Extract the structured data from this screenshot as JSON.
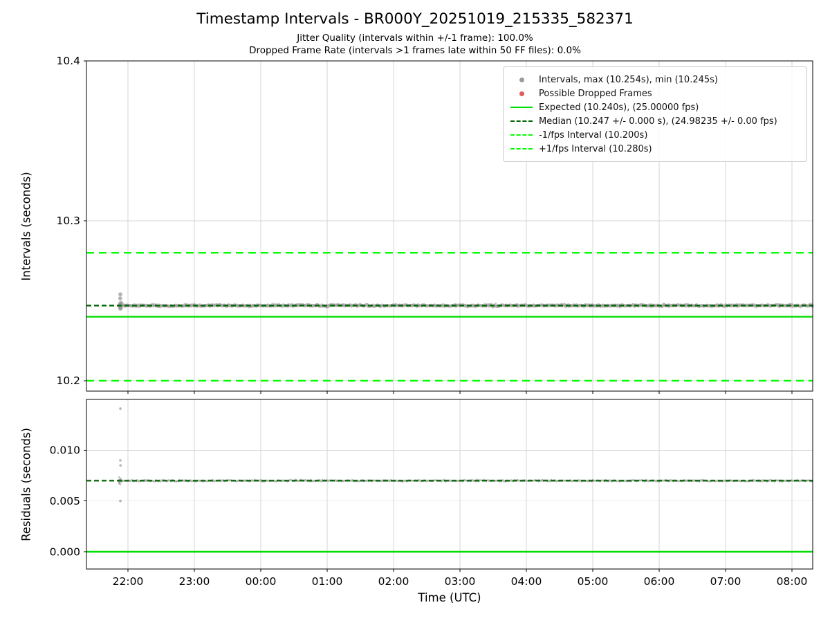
{
  "figure": {
    "title": "Timestamp Intervals - BR000Y_20251019_215335_582371",
    "subtitle_jitter": "Jitter Quality (intervals within +/-1 frame): 100.0%",
    "subtitle_dropped": "Dropped Frame Rate (intervals >1 frames late within 50 FF files): 0.0%"
  },
  "x_axis": {
    "label": "Time (UTC)",
    "lim": [
      21.375,
      32.3125
    ],
    "ticks": [
      22,
      23,
      24,
      25,
      26,
      27,
      28,
      29,
      30,
      31,
      32
    ],
    "tick_labels": [
      "22:00",
      "23:00",
      "00:00",
      "01:00",
      "02:00",
      "03:00",
      "04:00",
      "05:00",
      "06:00",
      "07:00",
      "08:00"
    ]
  },
  "chart_data": [
    {
      "type": "scatter",
      "name": "intervals",
      "ylabel": "Intervals (seconds)",
      "ylim": [
        10.1935,
        10.4
      ],
      "yticks": [
        10.2,
        10.3,
        10.4
      ],
      "ytick_labels": [
        "10.2",
        "10.3",
        "10.4"
      ],
      "marker_color": "#9a9a9a",
      "stats": {
        "max_s": 10.254,
        "min_s": 10.245,
        "median_s": 10.247,
        "expected_s": 10.24,
        "expected_fps": "25.00000",
        "median_fps": "24.98235"
      },
      "lines": [
        {
          "name": "expected",
          "y": 10.24,
          "color": "#00dd00",
          "dash": "",
          "width": 2.4
        },
        {
          "name": "minus-1fps-interval",
          "y": 10.2,
          "color": "#00ff00",
          "dash": "11,7",
          "width": 2.4
        },
        {
          "name": "plus-1fps-interval",
          "y": 10.28,
          "color": "#00ff00",
          "dash": "11,7",
          "width": 2.4
        },
        {
          "name": "median",
          "y": 10.247,
          "color": "#006400",
          "dash": "7,4",
          "width": 2.4
        }
      ],
      "band": {
        "x_start": 21.87,
        "x_end": 32.3125,
        "y": 10.247,
        "spread": 0.0009,
        "n": 820
      },
      "start_cluster": {
        "x": 21.885,
        "y": 10.247,
        "n": 30,
        "spread": 0.0022,
        "x_spread": 0.04
      },
      "outliers": [
        [
          21.885,
          10.254
        ],
        [
          21.883,
          10.2515
        ],
        [
          21.888,
          10.2455
        ],
        [
          21.885,
          10.245
        ]
      ]
    },
    {
      "type": "scatter",
      "name": "residuals",
      "ylabel": "Residuals (seconds)",
      "ylim": [
        -0.0017,
        0.015
      ],
      "yticks": [
        0.0,
        0.005,
        0.01
      ],
      "ytick_labels": [
        "0.000",
        "0.005",
        "0.010"
      ],
      "marker_color": "#9a9a9a",
      "lines": [
        {
          "name": "zero-residual",
          "y": 0.0,
          "color": "#00dd00",
          "dash": "",
          "width": 2.6
        },
        {
          "name": "median-residual",
          "y": 0.007,
          "color": "#006400",
          "dash": "7,4",
          "width": 2.2
        }
      ],
      "band": {
        "x_start": 21.87,
        "x_end": 32.3125,
        "y": 0.007,
        "spread": 0.00012,
        "n": 820
      },
      "start_cluster": {
        "x": 21.885,
        "y": 0.007,
        "n": 20,
        "spread": 0.0004,
        "x_spread": 0.04
      },
      "outliers": [
        [
          21.885,
          0.0141
        ],
        [
          21.885,
          0.009
        ],
        [
          21.888,
          0.0085
        ],
        [
          21.885,
          0.005
        ]
      ]
    }
  ],
  "legend": {
    "entries": [
      {
        "icon": "gray-dot-marker-icon",
        "marker": "dot",
        "color": "#9a9a9a",
        "dash": false,
        "label": "Intervals, max (10.254s), min (10.245s)"
      },
      {
        "icon": "red-dot-marker-icon",
        "marker": "dot",
        "color": "#e05c5c",
        "dash": false,
        "label": "Possible Dropped Frames"
      },
      {
        "icon": "solid-green-line-marker-icon",
        "marker": "line",
        "color": "#00dd00",
        "dash": false,
        "label": "Expected (10.240s), (25.00000 fps)"
      },
      {
        "icon": "dashed-darkgreen-line-marker-icon",
        "marker": "line",
        "color": "#006400",
        "dash": true,
        "label": "Median (10.247 +/- 0.000 s), (24.98235 +/- 0.00 fps)"
      },
      {
        "icon": "dashed-green-line-marker-icon",
        "marker": "line",
        "color": "#00ff00",
        "dash": true,
        "label": "-1/fps Interval (10.200s)"
      },
      {
        "icon": "dashed-green-line-marker-icon",
        "marker": "line",
        "color": "#00ff00",
        "dash": true,
        "label": "+1/fps Interval (10.280s)"
      }
    ]
  },
  "style": {
    "grid_color": "#d4d4d4",
    "frame_color": "#000000",
    "tick_font_size": 15.5
  }
}
